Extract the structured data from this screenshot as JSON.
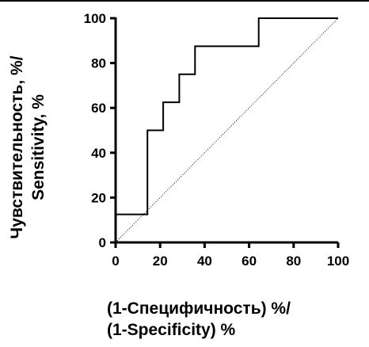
{
  "chart_data": {
    "type": "line",
    "title": "",
    "xlabel": [
      "(1-Специфичность) %/",
      "(1-Specificity) %"
    ],
    "ylabel": [
      "Чувствительность, %/",
      "Sensitivity, %"
    ],
    "xlim": [
      0,
      100
    ],
    "ylim": [
      0,
      100
    ],
    "xticks": [
      "0",
      "20",
      "40",
      "60",
      "80",
      "100"
    ],
    "yticks": [
      "0",
      "20",
      "40",
      "60",
      "80",
      "100"
    ],
    "grid": false,
    "series": [
      {
        "style": "step",
        "x": [
          0,
          14.3,
          14.3,
          21.4,
          21.4,
          28.6,
          28.6,
          35.7,
          35.7,
          64.3,
          64.3,
          100
        ],
        "y": [
          12.5,
          12.5,
          50,
          50,
          62.5,
          62.5,
          75,
          75,
          87.5,
          87.5,
          100,
          100
        ]
      },
      {
        "style": "dotted-reference",
        "x": [
          0,
          100
        ],
        "y": [
          0,
          100
        ]
      }
    ]
  }
}
